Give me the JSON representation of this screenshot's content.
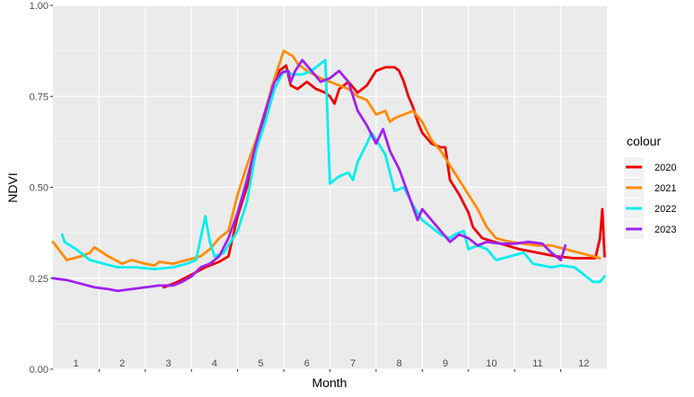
{
  "chart_data": {
    "type": "line",
    "title": "",
    "xlabel": "Month",
    "ylabel": "NDVI",
    "xlim": [
      0.6,
      12.6
    ],
    "ylim": [
      0,
      1
    ],
    "yticks": [
      0,
      0.25,
      0.5,
      0.75,
      1
    ],
    "ytick_labels": [
      "0.00",
      "0.25",
      "0.50",
      "0.75",
      "1.00"
    ],
    "month_labels": [
      "1",
      "2",
      "3",
      "4",
      "5",
      "6",
      "7",
      "8",
      "9",
      "10",
      "11",
      "12"
    ],
    "grid": true,
    "legend": {
      "title": "colour",
      "placement": "right"
    },
    "series": [
      {
        "name": "2020",
        "color": "#ee0000",
        "points": [
          [
            3.0,
            0.225
          ],
          [
            3.3,
            0.24
          ],
          [
            3.6,
            0.26
          ],
          [
            3.9,
            0.28
          ],
          [
            4.2,
            0.295
          ],
          [
            4.4,
            0.31
          ],
          [
            4.6,
            0.42
          ],
          [
            4.8,
            0.5
          ],
          [
            5.0,
            0.6
          ],
          [
            5.2,
            0.7
          ],
          [
            5.35,
            0.78
          ],
          [
            5.5,
            0.82
          ],
          [
            5.65,
            0.835
          ],
          [
            5.75,
            0.78
          ],
          [
            5.9,
            0.77
          ],
          [
            6.1,
            0.79
          ],
          [
            6.3,
            0.77
          ],
          [
            6.5,
            0.76
          ],
          [
            6.6,
            0.75
          ],
          [
            6.7,
            0.73
          ],
          [
            6.8,
            0.77
          ],
          [
            7.0,
            0.79
          ],
          [
            7.2,
            0.76
          ],
          [
            7.4,
            0.78
          ],
          [
            7.6,
            0.82
          ],
          [
            7.8,
            0.83
          ],
          [
            8.0,
            0.83
          ],
          [
            8.1,
            0.82
          ],
          [
            8.2,
            0.79
          ],
          [
            8.3,
            0.75
          ],
          [
            8.4,
            0.72
          ],
          [
            8.5,
            0.68
          ],
          [
            8.6,
            0.65
          ],
          [
            8.8,
            0.62
          ],
          [
            9.0,
            0.61
          ],
          [
            9.1,
            0.61
          ],
          [
            9.2,
            0.52
          ],
          [
            9.4,
            0.48
          ],
          [
            9.6,
            0.43
          ],
          [
            9.7,
            0.39
          ],
          [
            9.9,
            0.36
          ],
          [
            10.3,
            0.345
          ],
          [
            10.7,
            0.33
          ],
          [
            11.1,
            0.32
          ],
          [
            11.5,
            0.31
          ],
          [
            11.9,
            0.305
          ],
          [
            12.2,
            0.305
          ],
          [
            12.35,
            0.305
          ],
          [
            12.45,
            0.36
          ],
          [
            12.5,
            0.44
          ],
          [
            12.55,
            0.31
          ]
        ]
      },
      {
        "name": "2021",
        "color": "#ff8c00",
        "points": [
          [
            0.6,
            0.35
          ],
          [
            0.9,
            0.3
          ],
          [
            1.2,
            0.31
          ],
          [
            1.4,
            0.32
          ],
          [
            1.5,
            0.335
          ],
          [
            1.8,
            0.31
          ],
          [
            2.1,
            0.29
          ],
          [
            2.3,
            0.3
          ],
          [
            2.6,
            0.29
          ],
          [
            2.8,
            0.285
          ],
          [
            2.9,
            0.295
          ],
          [
            3.2,
            0.29
          ],
          [
            3.5,
            0.3
          ],
          [
            3.8,
            0.31
          ],
          [
            4.0,
            0.33
          ],
          [
            4.2,
            0.36
          ],
          [
            4.4,
            0.38
          ],
          [
            4.6,
            0.48
          ],
          [
            4.8,
            0.56
          ],
          [
            5.0,
            0.63
          ],
          [
            5.2,
            0.71
          ],
          [
            5.4,
            0.8
          ],
          [
            5.6,
            0.875
          ],
          [
            5.8,
            0.86
          ],
          [
            5.9,
            0.84
          ],
          [
            6.1,
            0.82
          ],
          [
            6.4,
            0.8
          ],
          [
            6.6,
            0.79
          ],
          [
            6.8,
            0.78
          ],
          [
            7.0,
            0.77
          ],
          [
            7.2,
            0.75
          ],
          [
            7.4,
            0.74
          ],
          [
            7.6,
            0.7
          ],
          [
            7.8,
            0.71
          ],
          [
            7.9,
            0.68
          ],
          [
            8.0,
            0.69
          ],
          [
            8.2,
            0.7
          ],
          [
            8.4,
            0.71
          ],
          [
            8.6,
            0.68
          ],
          [
            8.8,
            0.63
          ],
          [
            9.0,
            0.6
          ],
          [
            9.2,
            0.56
          ],
          [
            9.4,
            0.52
          ],
          [
            9.6,
            0.48
          ],
          [
            9.8,
            0.44
          ],
          [
            10.0,
            0.39
          ],
          [
            10.2,
            0.36
          ],
          [
            10.5,
            0.35
          ],
          [
            10.8,
            0.345
          ],
          [
            11.1,
            0.34
          ],
          [
            11.4,
            0.34
          ],
          [
            11.7,
            0.33
          ],
          [
            12.0,
            0.32
          ],
          [
            12.3,
            0.31
          ],
          [
            12.45,
            0.305
          ]
        ]
      },
      {
        "name": "2022",
        "color": "#00eeee",
        "points": [
          [
            0.8,
            0.37
          ],
          [
            0.85,
            0.35
          ],
          [
            1.1,
            0.33
          ],
          [
            1.4,
            0.3
          ],
          [
            1.7,
            0.29
          ],
          [
            2.0,
            0.28
          ],
          [
            2.4,
            0.28
          ],
          [
            2.8,
            0.275
          ],
          [
            3.2,
            0.28
          ],
          [
            3.5,
            0.29
          ],
          [
            3.7,
            0.3
          ],
          [
            3.8,
            0.36
          ],
          [
            3.9,
            0.42
          ],
          [
            4.0,
            0.35
          ],
          [
            4.1,
            0.31
          ],
          [
            4.3,
            0.32
          ],
          [
            4.6,
            0.38
          ],
          [
            4.8,
            0.46
          ],
          [
            5.0,
            0.6
          ],
          [
            5.2,
            0.68
          ],
          [
            5.4,
            0.77
          ],
          [
            5.6,
            0.82
          ],
          [
            5.8,
            0.81
          ],
          [
            6.0,
            0.81
          ],
          [
            6.2,
            0.82
          ],
          [
            6.4,
            0.84
          ],
          [
            6.5,
            0.85
          ],
          [
            6.6,
            0.51
          ],
          [
            6.8,
            0.53
          ],
          [
            7.0,
            0.54
          ],
          [
            7.1,
            0.52
          ],
          [
            7.2,
            0.57
          ],
          [
            7.4,
            0.62
          ],
          [
            7.5,
            0.65
          ],
          [
            7.6,
            0.63
          ],
          [
            7.8,
            0.59
          ],
          [
            8.0,
            0.49
          ],
          [
            8.2,
            0.5
          ],
          [
            8.4,
            0.45
          ],
          [
            8.6,
            0.41
          ],
          [
            8.8,
            0.39
          ],
          [
            9.0,
            0.37
          ],
          [
            9.2,
            0.36
          ],
          [
            9.3,
            0.37
          ],
          [
            9.5,
            0.38
          ],
          [
            9.6,
            0.33
          ],
          [
            9.8,
            0.34
          ],
          [
            10.0,
            0.33
          ],
          [
            10.2,
            0.3
          ],
          [
            10.5,
            0.31
          ],
          [
            10.8,
            0.32
          ],
          [
            11.0,
            0.29
          ],
          [
            11.2,
            0.285
          ],
          [
            11.4,
            0.28
          ],
          [
            11.6,
            0.285
          ],
          [
            11.9,
            0.28
          ],
          [
            12.1,
            0.26
          ],
          [
            12.3,
            0.24
          ],
          [
            12.45,
            0.24
          ],
          [
            12.55,
            0.255
          ]
        ]
      },
      {
        "name": "2023",
        "color": "#a020f0",
        "points": [
          [
            0.6,
            0.25
          ],
          [
            0.9,
            0.245
          ],
          [
            1.2,
            0.235
          ],
          [
            1.5,
            0.225
          ],
          [
            1.8,
            0.22
          ],
          [
            2.0,
            0.215
          ],
          [
            2.3,
            0.22
          ],
          [
            2.6,
            0.225
          ],
          [
            2.9,
            0.23
          ],
          [
            3.2,
            0.23
          ],
          [
            3.4,
            0.24
          ],
          [
            3.6,
            0.255
          ],
          [
            3.8,
            0.28
          ],
          [
            4.0,
            0.29
          ],
          [
            4.2,
            0.31
          ],
          [
            4.4,
            0.36
          ],
          [
            4.6,
            0.43
          ],
          [
            4.8,
            0.52
          ],
          [
            5.0,
            0.62
          ],
          [
            5.2,
            0.71
          ],
          [
            5.4,
            0.79
          ],
          [
            5.55,
            0.815
          ],
          [
            5.7,
            0.82
          ],
          [
            5.75,
            0.79
          ],
          [
            5.85,
            0.82
          ],
          [
            6.0,
            0.85
          ],
          [
            6.2,
            0.82
          ],
          [
            6.4,
            0.79
          ],
          [
            6.6,
            0.8
          ],
          [
            6.8,
            0.82
          ],
          [
            7.0,
            0.79
          ],
          [
            7.2,
            0.71
          ],
          [
            7.4,
            0.67
          ],
          [
            7.6,
            0.62
          ],
          [
            7.75,
            0.66
          ],
          [
            7.9,
            0.6
          ],
          [
            8.1,
            0.55
          ],
          [
            8.3,
            0.48
          ],
          [
            8.5,
            0.41
          ],
          [
            8.6,
            0.44
          ],
          [
            8.8,
            0.41
          ],
          [
            9.0,
            0.38
          ],
          [
            9.2,
            0.35
          ],
          [
            9.4,
            0.37
          ],
          [
            9.6,
            0.36
          ],
          [
            9.8,
            0.34
          ],
          [
            10.0,
            0.35
          ],
          [
            10.3,
            0.345
          ],
          [
            10.6,
            0.345
          ],
          [
            10.9,
            0.35
          ],
          [
            11.2,
            0.345
          ],
          [
            11.4,
            0.32
          ],
          [
            11.6,
            0.3
          ],
          [
            11.7,
            0.34
          ]
        ]
      }
    ]
  }
}
